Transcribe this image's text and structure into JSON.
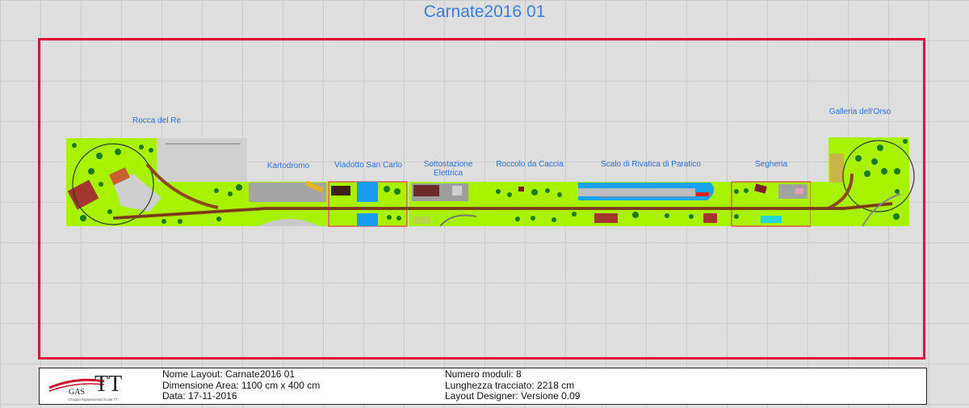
{
  "title": "Carnate2016 01",
  "modules": [
    {
      "label": "Rocca del Re"
    },
    {
      "label": "Kartodromo"
    },
    {
      "label": "Viadotto San Carlo"
    },
    {
      "label": "Sottostazione\nElettrica"
    },
    {
      "label": "Roccolo da Caccia"
    },
    {
      "label": "Scalo di Rivatica di Paratico"
    },
    {
      "label": "Segheria"
    },
    {
      "label": "Galleria dell'Orso"
    }
  ],
  "info": {
    "nome_layout": "Nome Layout: Carnate2016 01",
    "dimensione": "Dimensione Area: 1100 cm x 400 cm",
    "data": "Data: 17-11-2016",
    "numero_moduli": "Numero moduli: 8",
    "lunghezza": "Lunghezza tracciato: 2218 cm",
    "designer": "Layout Designer: Versione 0.09"
  },
  "logo": {
    "text_main": "TT",
    "text_gas": "GAS",
    "tagline": "Gruppo Appassionati Scala TT"
  },
  "colors": {
    "accent_title": "#3a7de0",
    "area_border": "#e0103a",
    "grass": "#a8f200",
    "track": "#8b4a1c"
  }
}
